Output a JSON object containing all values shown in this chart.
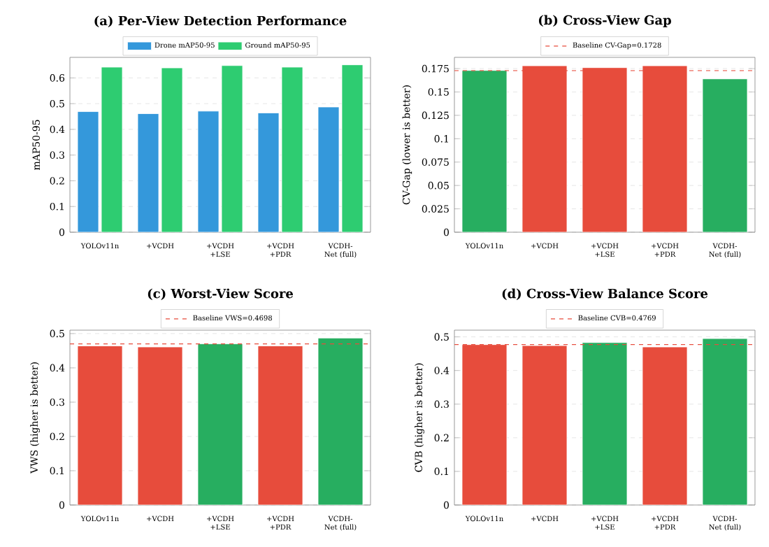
{
  "chart_data": [
    {
      "type": "bar",
      "title": "(a) Per-View Detection Performance",
      "ylabel": "mAP50-95",
      "categories": [
        "YOLOv11n",
        "+VCDH",
        "+VCDH +LSE",
        "+VCDH +PDR",
        "VCDH-Net (full)"
      ],
      "series": [
        {
          "name": "Drone mAP50-95",
          "color": "#3498db",
          "values": [
            0.469,
            0.461,
            0.471,
            0.464,
            0.487
          ]
        },
        {
          "name": "Ground mAP50-95",
          "color": "#2ecc71",
          "values": [
            0.642,
            0.639,
            0.648,
            0.642,
            0.651
          ]
        }
      ],
      "ylim": [
        0,
        0.68
      ],
      "yticks": [
        0,
        0.1,
        0.2,
        0.3,
        0.4,
        0.5,
        0.6
      ],
      "grid": "y",
      "legend": "top"
    },
    {
      "type": "bar",
      "title": "(b) Cross-View Gap",
      "ylabel": "CV-Gap (lower is better)",
      "categories": [
        "YOLOv11n",
        "+VCDH",
        "+VCDH +LSE",
        "+VCDH +PDR",
        "VCDH-Net (full)"
      ],
      "values": [
        0.173,
        0.178,
        0.176,
        0.178,
        0.164
      ],
      "colors": [
        "#27ae60",
        "#e74c3c",
        "#e74c3c",
        "#e74c3c",
        "#27ae60"
      ],
      "ylim": [
        0,
        0.187
      ],
      "yticks": [
        0,
        0.025,
        0.05,
        0.075,
        0.1,
        0.125,
        0.15,
        0.175
      ],
      "grid": "y",
      "legend": "top",
      "ref_lines": [
        {
          "axis": "y",
          "value": 0.1728,
          "label": "Baseline CV-Gap=0.1728",
          "color": "#e74c3c",
          "line_style": "dashed"
        }
      ]
    },
    {
      "type": "bar",
      "title": "(c) Worst-View Score",
      "ylabel": "VWS (higher is better)",
      "categories": [
        "YOLOv11n",
        "+VCDH",
        "+VCDH +LSE",
        "+VCDH +PDR",
        "VCDH-Net (full)"
      ],
      "values": [
        0.464,
        0.461,
        0.47,
        0.464,
        0.487
      ],
      "colors": [
        "#e74c3c",
        "#e74c3c",
        "#27ae60",
        "#e74c3c",
        "#27ae60"
      ],
      "ylim": [
        0,
        0.51
      ],
      "yticks": [
        0,
        0.1,
        0.2,
        0.3,
        0.4,
        0.5
      ],
      "grid": "y",
      "legend": "top",
      "ref_lines": [
        {
          "axis": "y",
          "value": 0.4698,
          "label": "Baseline VWS=0.4698",
          "color": "#e74c3c",
          "line_style": "dashed"
        }
      ]
    },
    {
      "type": "bar",
      "title": "(d) Cross-View Balance Score",
      "ylabel": "CVB (higher is better)",
      "categories": [
        "YOLOv11n",
        "+VCDH",
        "+VCDH +LSE",
        "+VCDH +PDR",
        "VCDH-Net (full)"
      ],
      "values": [
        0.477,
        0.474,
        0.483,
        0.47,
        0.495
      ],
      "colors": [
        "#e74c3c",
        "#e74c3c",
        "#27ae60",
        "#e74c3c",
        "#27ae60"
      ],
      "ylim": [
        0,
        0.52
      ],
      "yticks": [
        0,
        0.1,
        0.2,
        0.3,
        0.4,
        0.5
      ],
      "grid": "y",
      "legend": "top",
      "ref_lines": [
        {
          "axis": "y",
          "value": 0.4769,
          "label": "Baseline CVB=0.4769",
          "color": "#e74c3c",
          "line_style": "dashed"
        }
      ]
    }
  ]
}
